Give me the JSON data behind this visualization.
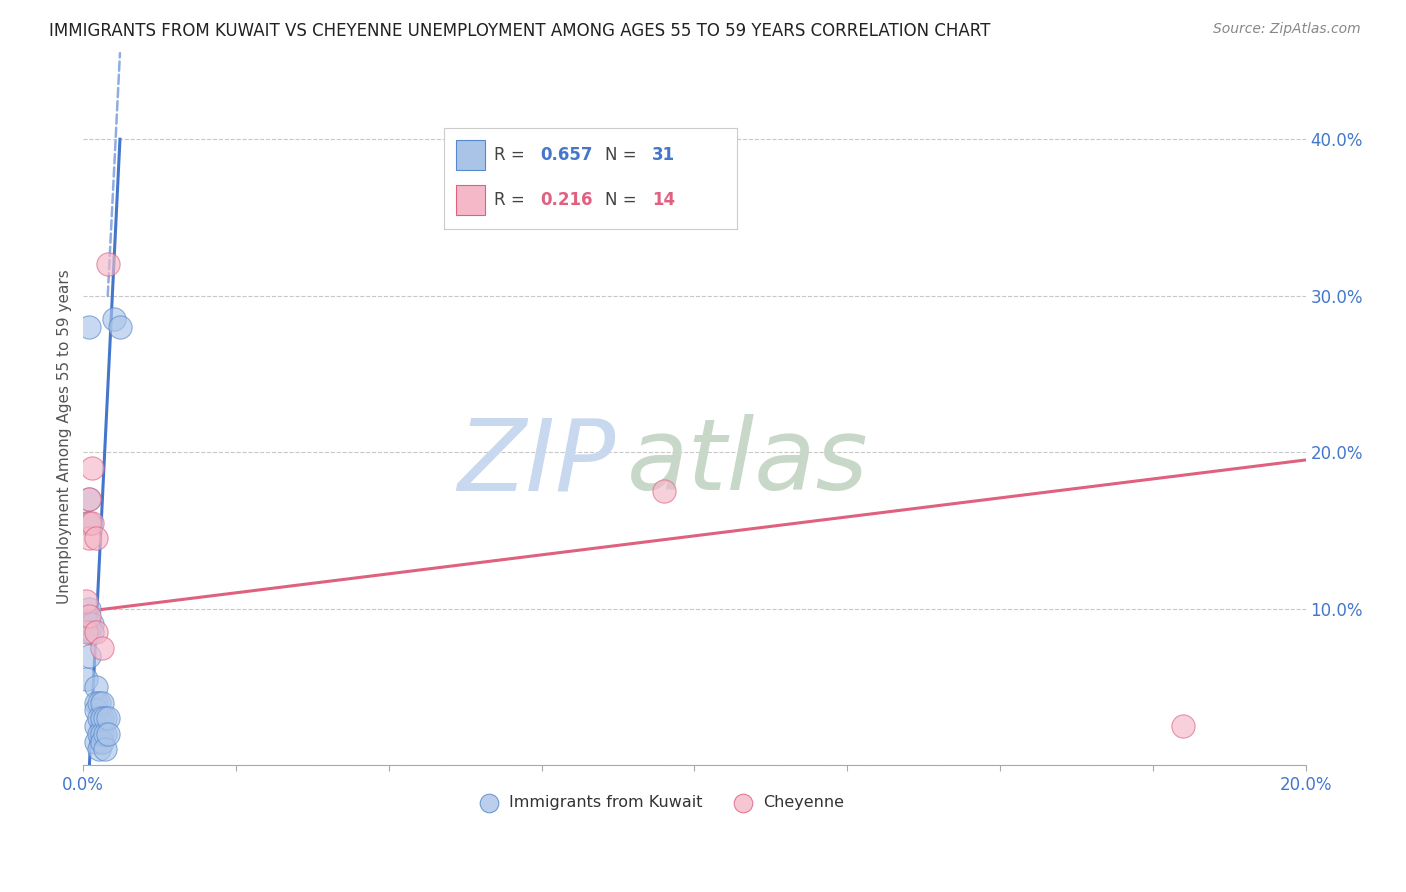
{
  "title": "IMMIGRANTS FROM KUWAIT VS CHEYENNE UNEMPLOYMENT AMONG AGES 55 TO 59 YEARS CORRELATION CHART",
  "source": "Source: ZipAtlas.com",
  "ylabel": "Unemployment Among Ages 55 to 59 years",
  "xlim": [
    0.0,
    0.2
  ],
  "ylim": [
    0.0,
    0.42
  ],
  "xticks": [
    0.0,
    0.025,
    0.05,
    0.075,
    0.1,
    0.125,
    0.15,
    0.175,
    0.2
  ],
  "yticks": [
    0.0,
    0.1,
    0.2,
    0.3,
    0.4
  ],
  "xtick_labels_show": [
    0.0,
    0.2
  ],
  "xticklabel_left": "0.0%",
  "xticklabel_right": "20.0%",
  "yticklabels": [
    "",
    "10.0%",
    "20.0%",
    "30.0%",
    "40.0%"
  ],
  "grid_color": "#c8c8c8",
  "background_color": "#ffffff",
  "blue_color": "#aac4e8",
  "pink_color": "#f4b8c8",
  "blue_edge_color": "#5588cc",
  "pink_edge_color": "#e06080",
  "blue_line_color": "#4477cc",
  "pink_line_color": "#e06080",
  "tick_label_color": "#4477cc",
  "R_blue": 0.657,
  "N_blue": 31,
  "R_pink": 0.216,
  "N_pink": 14,
  "blue_points": [
    [
      0.0005,
      0.155
    ],
    [
      0.0005,
      0.055
    ],
    [
      0.001,
      0.28
    ],
    [
      0.001,
      0.17
    ],
    [
      0.001,
      0.155
    ],
    [
      0.001,
      0.1
    ],
    [
      0.001,
      0.09
    ],
    [
      0.001,
      0.085
    ],
    [
      0.001,
      0.07
    ],
    [
      0.0015,
      0.09
    ],
    [
      0.0015,
      0.085
    ],
    [
      0.002,
      0.05
    ],
    [
      0.002,
      0.04
    ],
    [
      0.002,
      0.035
    ],
    [
      0.002,
      0.025
    ],
    [
      0.002,
      0.015
    ],
    [
      0.0025,
      0.04
    ],
    [
      0.0025,
      0.03
    ],
    [
      0.0025,
      0.02
    ],
    [
      0.0025,
      0.01
    ],
    [
      0.003,
      0.04
    ],
    [
      0.003,
      0.03
    ],
    [
      0.003,
      0.02
    ],
    [
      0.003,
      0.015
    ],
    [
      0.0035,
      0.03
    ],
    [
      0.0035,
      0.02
    ],
    [
      0.0035,
      0.01
    ],
    [
      0.004,
      0.03
    ],
    [
      0.004,
      0.02
    ],
    [
      0.005,
      0.285
    ],
    [
      0.006,
      0.28
    ]
  ],
  "pink_points": [
    [
      0.0005,
      0.105
    ],
    [
      0.0005,
      0.085
    ],
    [
      0.001,
      0.17
    ],
    [
      0.001,
      0.155
    ],
    [
      0.001,
      0.145
    ],
    [
      0.001,
      0.095
    ],
    [
      0.0015,
      0.19
    ],
    [
      0.0015,
      0.155
    ],
    [
      0.002,
      0.145
    ],
    [
      0.002,
      0.085
    ],
    [
      0.003,
      0.075
    ],
    [
      0.004,
      0.32
    ],
    [
      0.095,
      0.175
    ],
    [
      0.18,
      0.025
    ]
  ],
  "blue_trendline_solid": [
    [
      0.001,
      0.0
    ],
    [
      0.006,
      0.4
    ]
  ],
  "blue_trendline_dashed": [
    [
      0.004,
      0.3
    ],
    [
      0.006,
      0.455
    ]
  ],
  "pink_trendline": [
    [
      0.0,
      0.098
    ],
    [
      0.2,
      0.195
    ]
  ],
  "watermark_zip": "ZIP",
  "watermark_atlas": "atlas",
  "watermark_color_zip": "#c8d8ee",
  "watermark_color_atlas": "#c8d8c8",
  "legend_blue_R": "0.657",
  "legend_blue_N": "31",
  "legend_pink_R": "0.216",
  "legend_pink_N": "14"
}
